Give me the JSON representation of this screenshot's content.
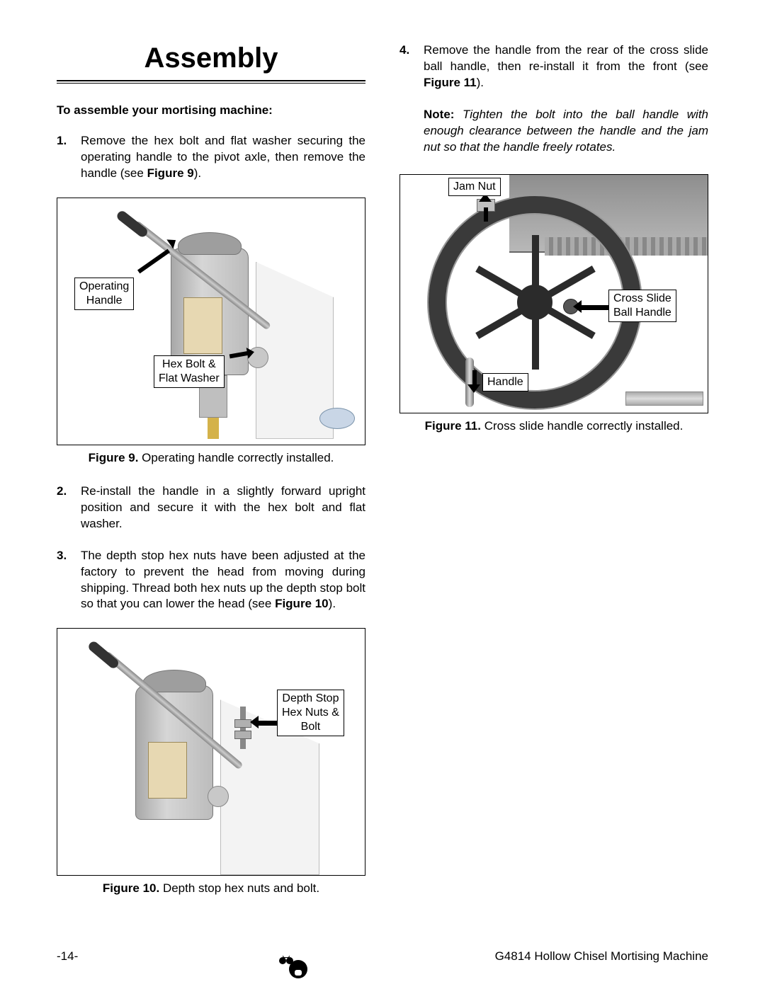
{
  "page": {
    "title": "Assembly",
    "subhead": "To assemble your mortising machine:",
    "pageNumber": "-14-",
    "footerRight": "G4814 Hollow Chisel Mortising Machine"
  },
  "steps": {
    "s1": {
      "num": "1.",
      "textA": "Remove the hex bolt and flat washer secur­ing the operating handle to the pivot axle, then remove the handle (see ",
      "fig": "Figure 9",
      "textB": ")."
    },
    "s2": {
      "num": "2.",
      "text": "Re-install the handle in a slightly forward upright position and secure it with the hex bolt and flat washer."
    },
    "s3": {
      "num": "3.",
      "textA": "The depth stop hex nuts have been adjusted at the factory to prevent the head from mov­ing during shipping. Thread both hex nuts up the depth stop bolt so that you can lower the head (see ",
      "fig": "Figure 10",
      "textB": ")."
    },
    "s4": {
      "num": "4.",
      "textA": "Remove the handle from the rear of the cross slide ball handle, then re-install it from the front (see ",
      "fig": "Figure 11",
      "textB": ")."
    },
    "note": {
      "label": "Note:",
      "body": " Tighten the bolt into the ball handle with enough clearance between the handle and the jam nut so that the handle freely rotates."
    }
  },
  "figures": {
    "f9": {
      "label": "Figure 9.",
      "caption": " Operating handle correctly installed.",
      "callouts": {
        "operating": "Operating\nHandle",
        "hexbolt": "Hex Bolt &\nFlat Washer"
      }
    },
    "f10": {
      "label": "Figure 10.",
      "caption": " Depth stop hex nuts and bolt.",
      "callouts": {
        "depth": "Depth Stop\nHex Nuts &\nBolt"
      }
    },
    "f11": {
      "label": "Figure 11.",
      "caption": " Cross slide handle correctly installed.",
      "callouts": {
        "jam": "Jam Nut",
        "handle": "Handle",
        "cross": "Cross Slide\nBall Handle"
      }
    }
  }
}
